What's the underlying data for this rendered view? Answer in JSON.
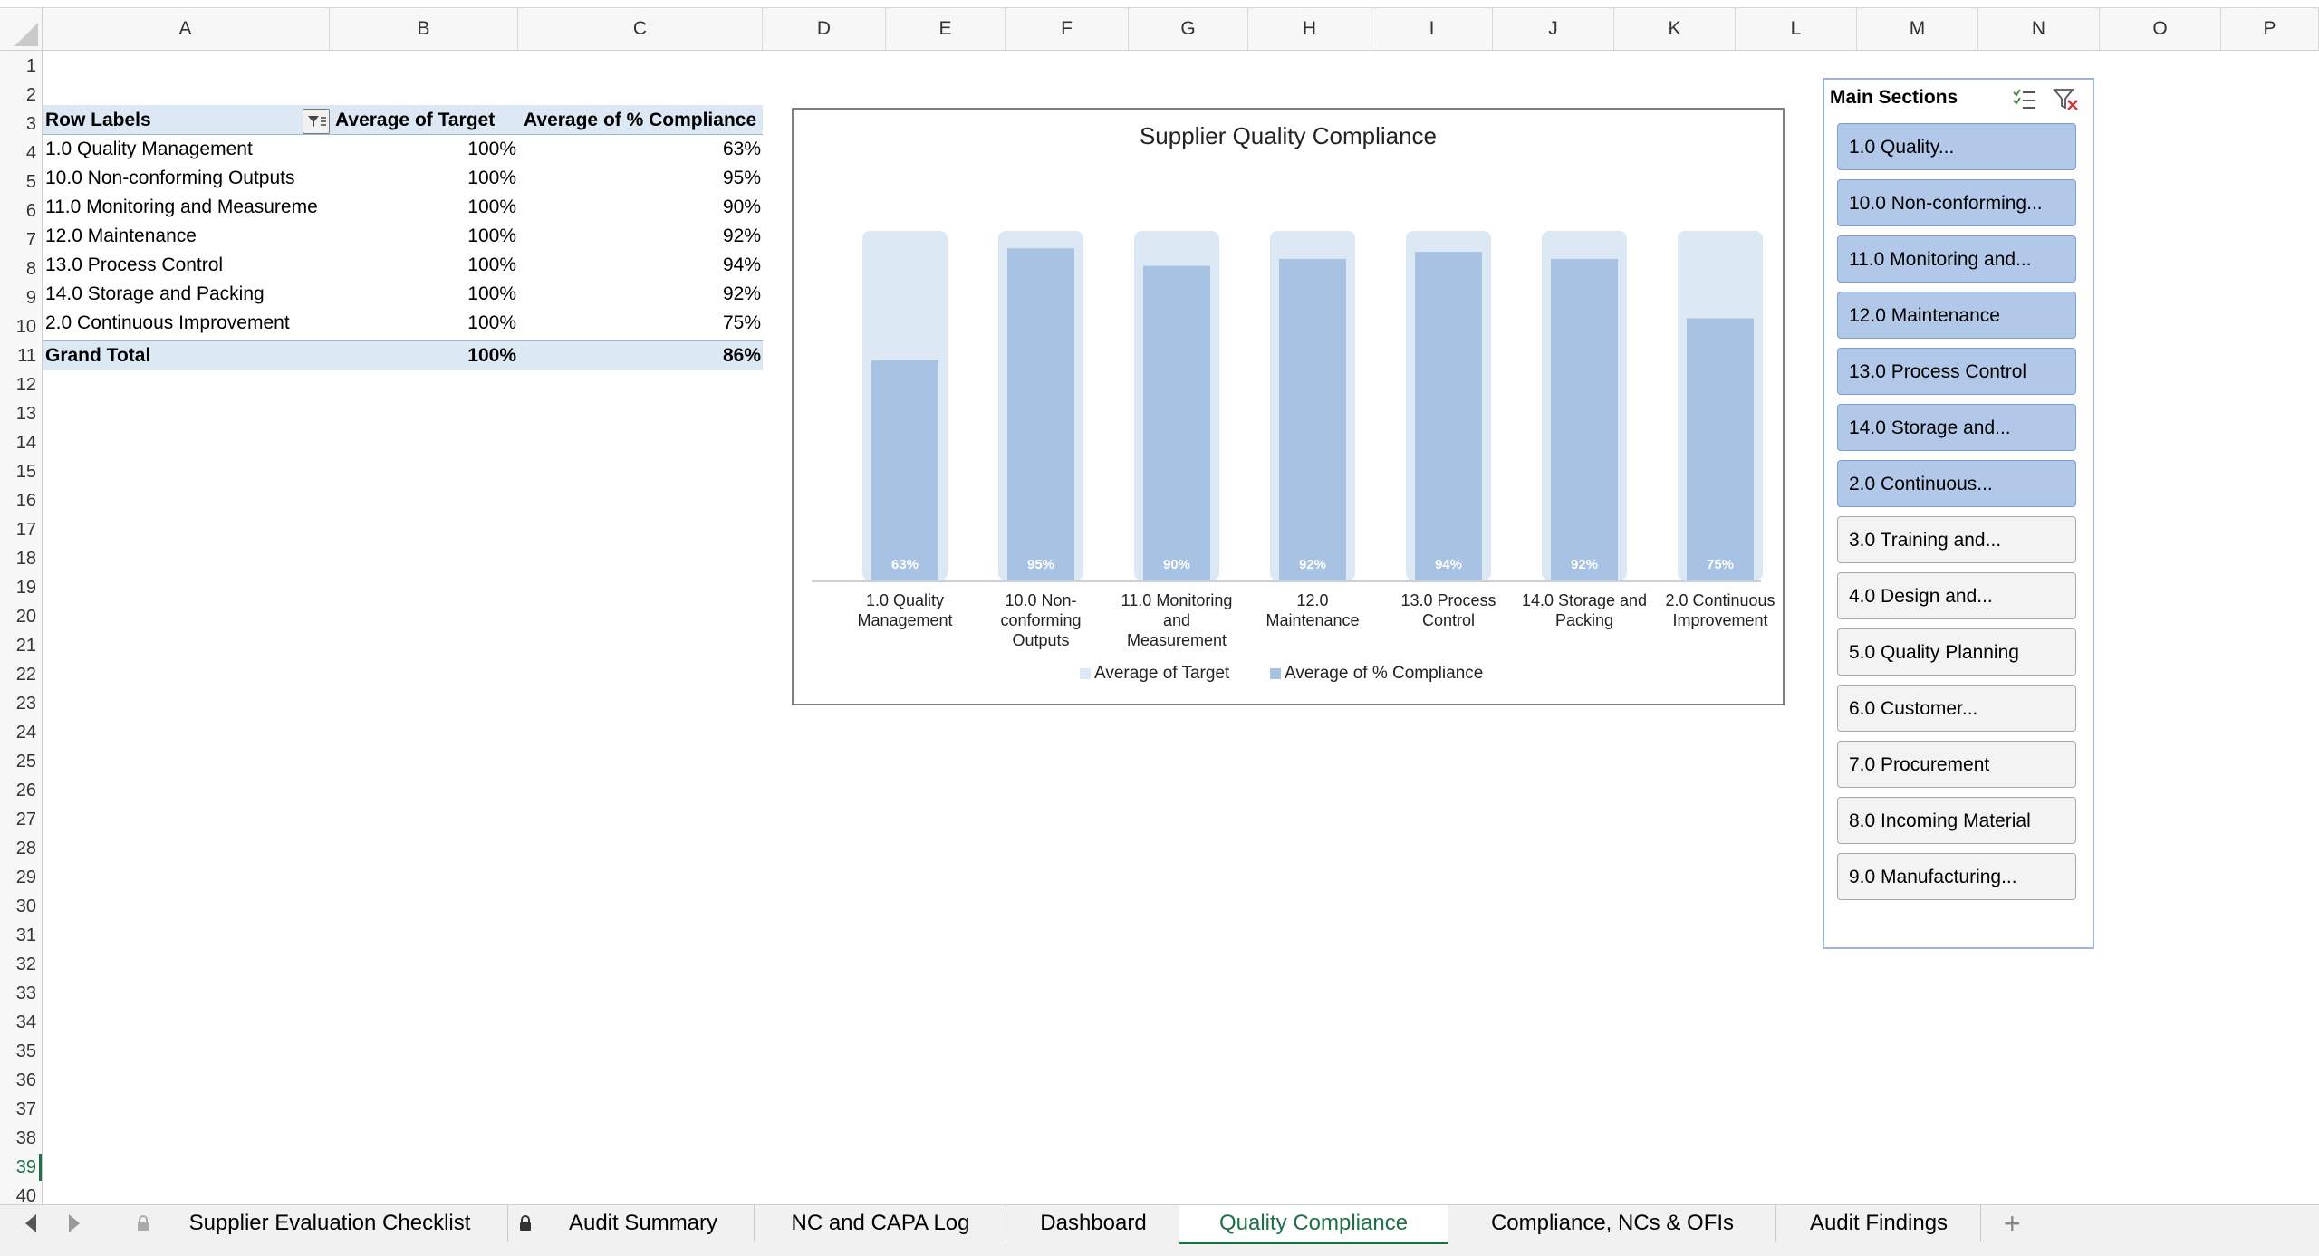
{
  "columns": [
    "A",
    "B",
    "C",
    "D",
    "E",
    "F",
    "G",
    "H",
    "I",
    "J",
    "K",
    "L",
    "M",
    "N",
    "O",
    "P"
  ],
  "rows": [
    "1",
    "2",
    "3",
    "4",
    "5",
    "6",
    "7",
    "8",
    "9",
    "10",
    "11",
    "12",
    "13",
    "14",
    "15",
    "16",
    "17",
    "18",
    "19",
    "20",
    "21",
    "22",
    "23",
    "24",
    "25",
    "26",
    "27",
    "28",
    "29",
    "30",
    "31",
    "32",
    "33",
    "34",
    "35",
    "36",
    "37",
    "38",
    "39",
    "40"
  ],
  "active_row": "39",
  "pivot": {
    "headers": [
      "Row Labels",
      "Average of Target",
      "Average of % Compliance"
    ],
    "rows": [
      [
        "1.0 Quality Management",
        "100%",
        "63%"
      ],
      [
        "10.0 Non-conforming Outputs",
        "100%",
        "95%"
      ],
      [
        "11.0 Monitoring and Measureme",
        "100%",
        "90%"
      ],
      [
        "12.0 Maintenance",
        "100%",
        "92%"
      ],
      [
        "13.0 Process Control",
        "100%",
        "94%"
      ],
      [
        "14.0 Storage and Packing",
        "100%",
        "92%"
      ],
      [
        "2.0 Continuous Improvement",
        "100%",
        "75%"
      ]
    ],
    "total": [
      "Grand Total",
      "100%",
      "86%"
    ]
  },
  "chart_data": {
    "type": "bar",
    "title": "Supplier Quality Compliance",
    "categories": [
      [
        "1.0 Quality",
        "Management"
      ],
      [
        "10.0 Non-",
        "conforming",
        "Outputs"
      ],
      [
        "11.0 Monitoring",
        "and",
        "Measurement"
      ],
      [
        "12.0",
        "Maintenance"
      ],
      [
        "13.0 Process",
        "Control"
      ],
      [
        "14.0 Storage and",
        "Packing"
      ],
      [
        "2.0 Continuous",
        "Improvement"
      ]
    ],
    "series": [
      {
        "name": "Average of Target",
        "values": [
          100,
          100,
          100,
          100,
          100,
          100,
          100
        ],
        "color": "#dde8f5"
      },
      {
        "name": "Average of % Compliance",
        "values": [
          63,
          95,
          90,
          92,
          94,
          92,
          75
        ],
        "color": "#a7c2e3"
      }
    ],
    "data_labels": [
      "63%",
      "95%",
      "90%",
      "92%",
      "94%",
      "92%",
      "75%"
    ],
    "ylim": [
      0,
      100
    ],
    "legend": "bottom",
    "grid": false
  },
  "slicer": {
    "title": "Main Sections",
    "items": [
      {
        "label": "1.0 Quality...",
        "selected": true
      },
      {
        "label": "10.0 Non-conforming...",
        "selected": true
      },
      {
        "label": "11.0 Monitoring and...",
        "selected": true
      },
      {
        "label": "12.0 Maintenance",
        "selected": true
      },
      {
        "label": "13.0 Process Control",
        "selected": true
      },
      {
        "label": "14.0 Storage and...",
        "selected": true
      },
      {
        "label": "2.0 Continuous...",
        "selected": true
      },
      {
        "label": "3.0 Training and...",
        "selected": false
      },
      {
        "label": "4.0 Design and...",
        "selected": false
      },
      {
        "label": "5.0 Quality Planning",
        "selected": false
      },
      {
        "label": "6.0 Customer...",
        "selected": false
      },
      {
        "label": "7.0 Procurement",
        "selected": false
      },
      {
        "label": "8.0 Incoming Material",
        "selected": false
      },
      {
        "label": "9.0 Manufacturing...",
        "selected": false
      }
    ]
  },
  "tabs": [
    {
      "label": "Supplier Evaluation Checklist",
      "locked": true,
      "active": false
    },
    {
      "label": "Audit Summary",
      "locked": true,
      "active": false
    },
    {
      "label": "NC and CAPA Log",
      "locked": false,
      "active": false
    },
    {
      "label": "Dashboard",
      "locked": false,
      "active": false
    },
    {
      "label": "Quality Compliance",
      "locked": false,
      "active": true
    },
    {
      "label": "Compliance, NCs & OFIs",
      "locked": false,
      "active": false
    },
    {
      "label": "Audit Findings",
      "locked": false,
      "active": false
    }
  ],
  "add_tab": "+"
}
